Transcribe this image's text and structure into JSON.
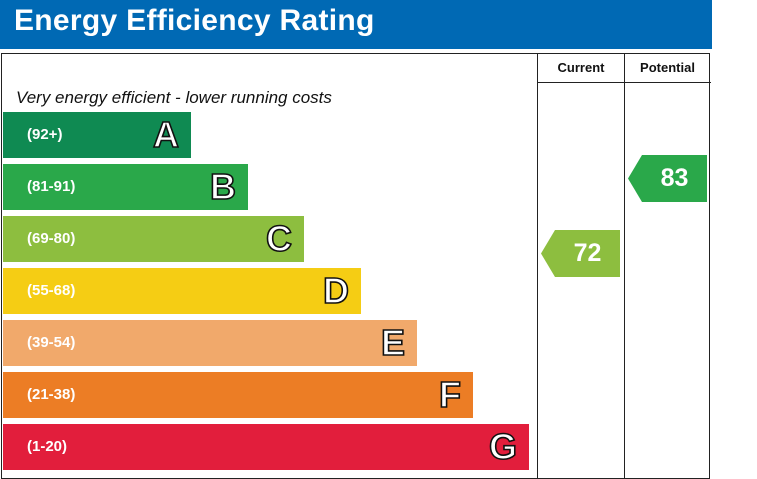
{
  "title": "Energy Efficiency Rating",
  "columns": {
    "current": "Current",
    "potential": "Potential"
  },
  "top_note": "Very energy efficient - lower running costs",
  "chart_data": {
    "type": "bar",
    "title": "Energy Efficiency Rating",
    "bands": [
      {
        "letter": "A",
        "range": "(92+)",
        "min": 92,
        "max": 100,
        "color": "#0f8a52"
      },
      {
        "letter": "B",
        "range": "(81-91)",
        "min": 81,
        "max": 91,
        "color": "#2aa84a"
      },
      {
        "letter": "C",
        "range": "(69-80)",
        "min": 69,
        "max": 80,
        "color": "#8dbe3f"
      },
      {
        "letter": "D",
        "range": "(55-68)",
        "min": 55,
        "max": 68,
        "color": "#f5cd14"
      },
      {
        "letter": "E",
        "range": "(39-54)",
        "min": 39,
        "max": 54,
        "color": "#f1a96b"
      },
      {
        "letter": "F",
        "range": "(21-38)",
        "min": 21,
        "max": 38,
        "color": "#ec7d25"
      },
      {
        "letter": "G",
        "range": "(1-20)",
        "min": 1,
        "max": 20,
        "color": "#e21e3c"
      }
    ],
    "current": {
      "value": 72,
      "band": "C",
      "color": "#8dbe3f"
    },
    "potential": {
      "value": 83,
      "band": "B",
      "color": "#2aa84a"
    }
  }
}
